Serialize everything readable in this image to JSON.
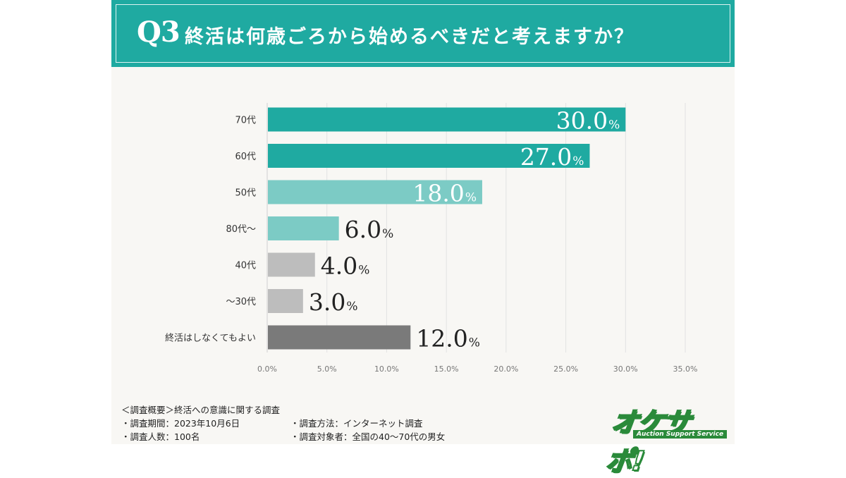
{
  "header": {
    "q_label": "Q3",
    "question": "終活は何歳ごろから始めるべきだと考えますか？",
    "color": "#1faaa1"
  },
  "chart_data": {
    "type": "bar",
    "orientation": "horizontal",
    "categories": [
      "70代",
      "60代",
      "50代",
      "80代〜",
      "40代",
      "〜30代",
      "終活はしなくてもよい"
    ],
    "values": [
      30.0,
      27.0,
      18.0,
      6.0,
      4.0,
      3.0,
      12.0
    ],
    "value_labels": [
      "30.0",
      "27.0",
      "18.0",
      "6.0",
      "4.0",
      "3.0",
      "12.0"
    ],
    "unit": "%",
    "colors": [
      "#1faaa1",
      "#1faaa1",
      "#7ccbc5",
      "#7ccbc5",
      "#bdbdbd",
      "#bdbdbd",
      "#7a7a7a"
    ],
    "xlim": [
      0,
      35
    ],
    "xticks": [
      0,
      5,
      10,
      15,
      20,
      25,
      30,
      35
    ],
    "xtick_labels": [
      "0.0%",
      "5.0%",
      "10.0%",
      "15.0%",
      "20.0%",
      "25.0%",
      "30.0%",
      "35.0%"
    ],
    "grid": "vertical"
  },
  "footer": {
    "overview": "＜調査概要＞終活への意識に関する調査",
    "period": "・調査期間：2023年10月6日",
    "count": "・調査人数：100名",
    "method": "・調査方法：インターネット調査",
    "target": "・調査対象者：全国の40〜70代の男女"
  },
  "logo": {
    "text": "オケサポ!",
    "sub": "Auction Support Service"
  }
}
